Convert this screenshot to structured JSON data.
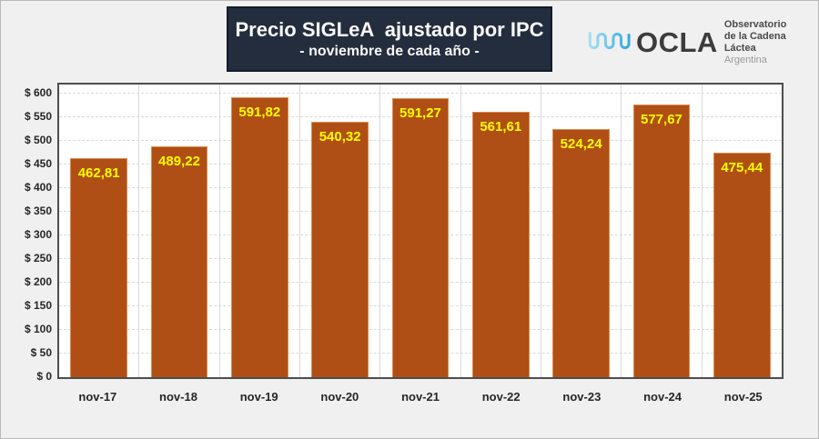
{
  "header": {
    "title": "Precio SIGLeA  ajustado por IPC",
    "subtitle": "- noviembre de cada año -",
    "logo": {
      "name": "OCLA",
      "line1": "Observatorio",
      "line2": "de la Cadena Láctea",
      "line3": "Argentina",
      "wave_icon": "wave-icon"
    }
  },
  "chart_data": {
    "type": "bar",
    "title": "Precio SIGLeA ajustado por IPC",
    "subtitle": "- noviembre de cada año -",
    "categories": [
      "nov-17",
      "nov-18",
      "nov-19",
      "nov-20",
      "nov-21",
      "nov-22",
      "nov-23",
      "nov-24",
      "nov-25"
    ],
    "values": [
      462.81,
      489.22,
      591.82,
      540.32,
      591.27,
      561.61,
      524.24,
      577.67,
      475.44
    ],
    "value_labels": [
      "462,81",
      "489,22",
      "591,82",
      "540,32",
      "591,27",
      "561,61",
      "524,24",
      "577,67",
      "475,44"
    ],
    "ylim": [
      0,
      600
    ],
    "y_tick_step": 50,
    "y_tick_labels": [
      "$ 0",
      "$ 50",
      "$ 100",
      "$ 150",
      "$ 200",
      "$ 250",
      "$ 300",
      "$ 350",
      "$ 400",
      "$ 450",
      "$ 500",
      "$ 550",
      "$ 600"
    ],
    "xlabel": "",
    "ylabel": "",
    "grid": "horizontal dashed gridlines every $50, solid vertical category separators",
    "legend": "none",
    "colors": {
      "bar_fill": "#B04F15",
      "bar_border": "#DD8A4E",
      "value_label": "#FFFF00",
      "gridline": "#D9D9D9",
      "plot_border": "#4D4D4D",
      "plot_background": "#FFFFFF",
      "page_background": "#F0F0F0",
      "title_box_background": "#232D3D",
      "title_text": "#FAFAFA",
      "axis_text": "#262626",
      "logo_wave_blue": "#45B4E8",
      "logo_text_gray": "#3C3C3C"
    }
  }
}
